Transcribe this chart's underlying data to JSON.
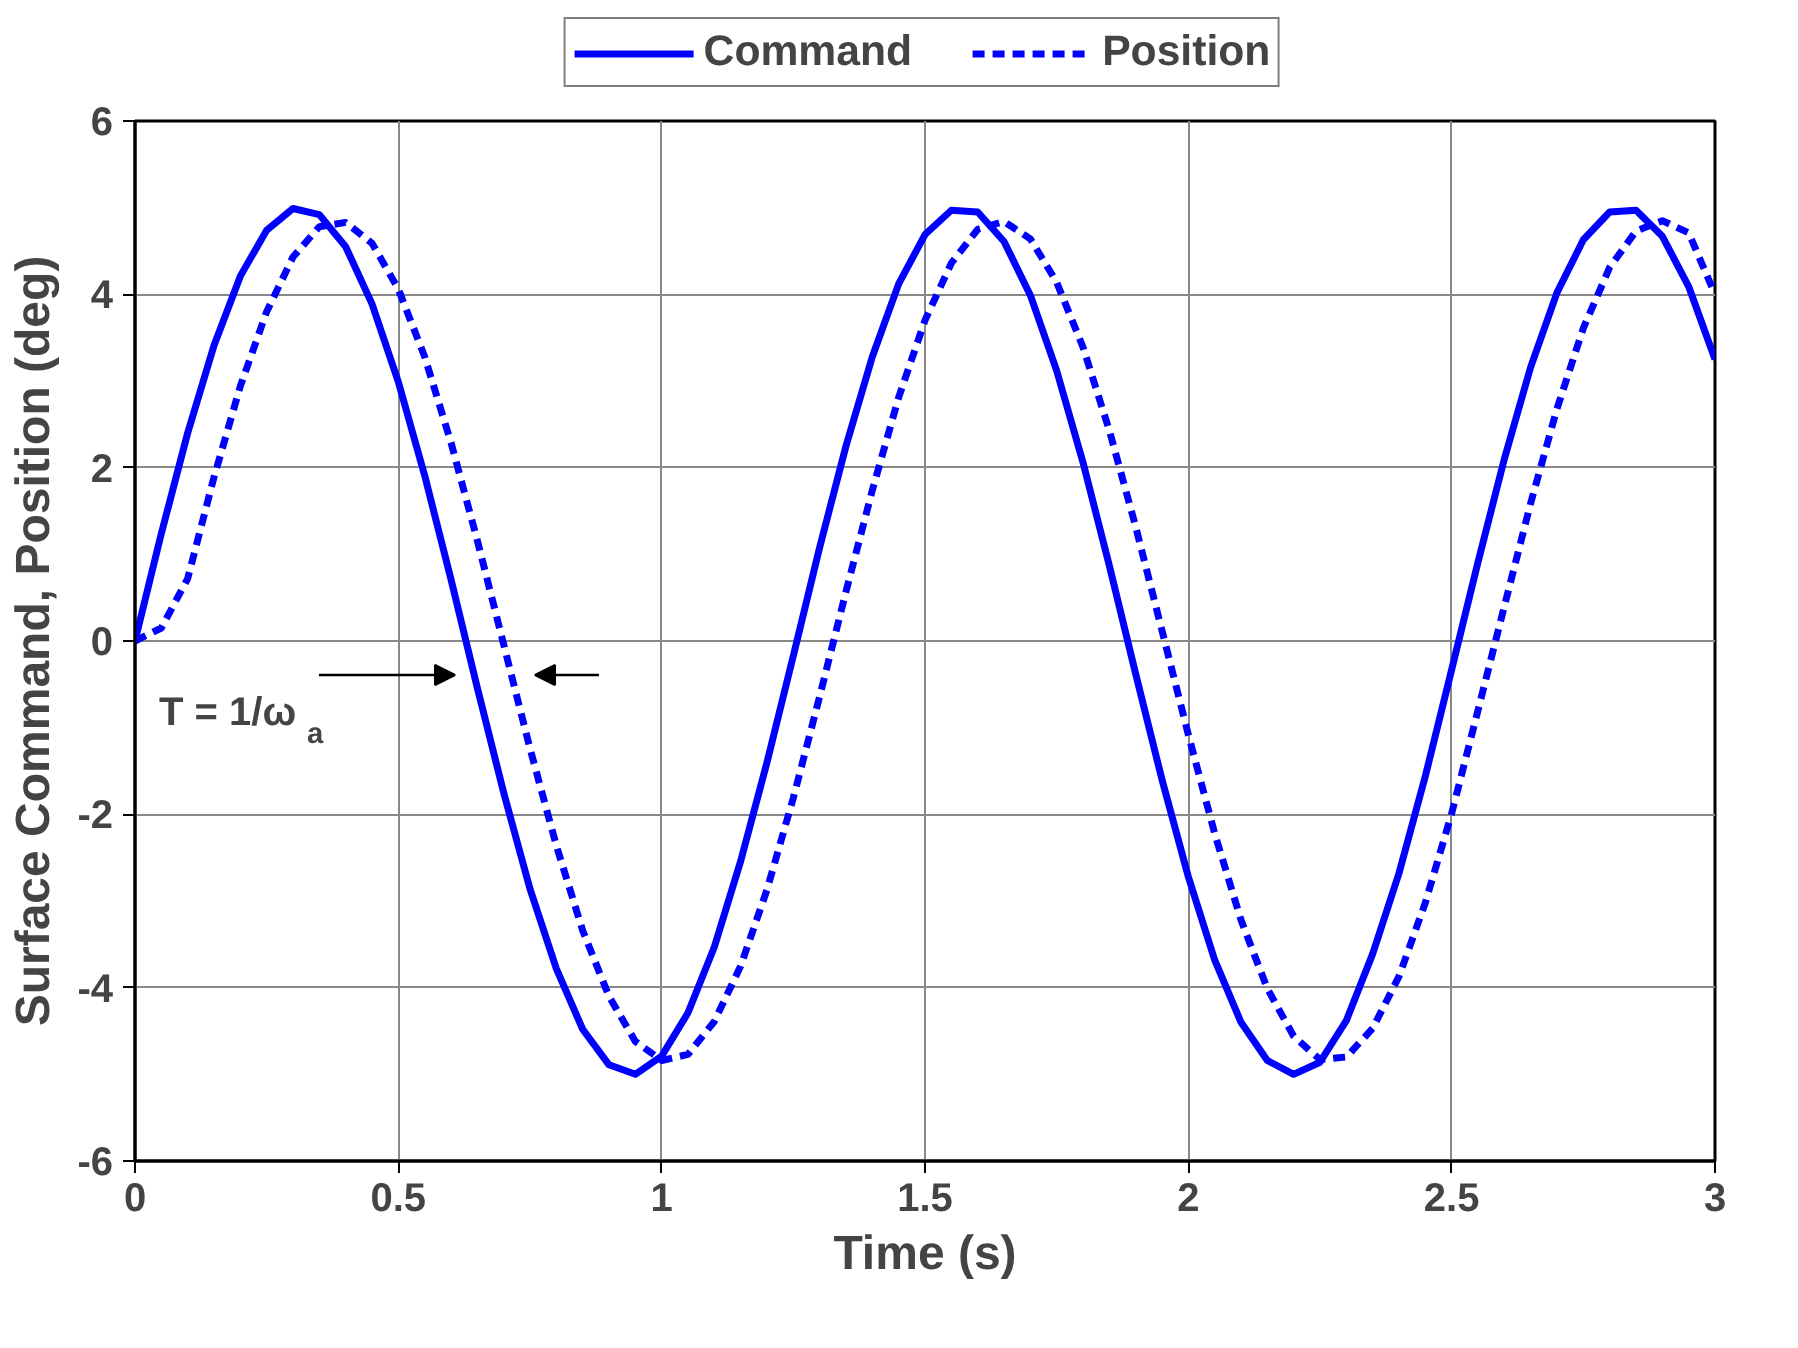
{
  "chart_data": {
    "type": "line",
    "xlabel": "Time (s)",
    "ylabel": "Surface Command, Position (deg)",
    "x": [
      0,
      0.05,
      0.1,
      0.15,
      0.2,
      0.25,
      0.3,
      0.35,
      0.4,
      0.45,
      0.5,
      0.55,
      0.6,
      0.65,
      0.7,
      0.75,
      0.8,
      0.85,
      0.9,
      0.95,
      1.0,
      1.05,
      1.1,
      1.15,
      1.2,
      1.25,
      1.3,
      1.35,
      1.4,
      1.45,
      1.5,
      1.55,
      1.6,
      1.65,
      1.7,
      1.75,
      1.8,
      1.85,
      1.9,
      1.95,
      2.0,
      2.05,
      2.1,
      2.15,
      2.2,
      2.25,
      2.3,
      2.35,
      2.4,
      2.45,
      2.5,
      2.55,
      2.6,
      2.65,
      2.7,
      2.75,
      2.8,
      2.85,
      2.9,
      2.95,
      3.0
    ],
    "series": [
      {
        "name": "Command",
        "color": "#0000ff",
        "line_style": "solid",
        "values": [
          0,
          1.24,
          2.4,
          3.41,
          4.21,
          4.74,
          4.99,
          4.92,
          4.55,
          3.89,
          2.99,
          1.91,
          0.71,
          -0.54,
          -1.75,
          -2.86,
          -3.78,
          -4.48,
          -4.89,
          -5.0,
          -4.79,
          -4.29,
          -3.53,
          -2.54,
          -1.4,
          -0.17,
          1.08,
          2.25,
          3.28,
          4.12,
          4.69,
          4.97,
          4.95,
          4.61,
          3.99,
          3.12,
          2.06,
          0.87,
          -0.38,
          -1.6,
          -2.72,
          -3.68,
          -4.4,
          -4.84,
          -5.0,
          -4.86,
          -4.38,
          -3.61,
          -2.68,
          -1.56,
          -0.33,
          0.91,
          2.1,
          3.16,
          4.02,
          4.63,
          4.95,
          4.97,
          4.67,
          4.09,
          3.25
        ]
      },
      {
        "name": "Position",
        "color": "#0000ff",
        "line_style": "dashed",
        "values": [
          0,
          0.15,
          0.72,
          1.89,
          2.94,
          3.8,
          4.43,
          4.78,
          4.83,
          4.59,
          4.06,
          3.28,
          2.29,
          1.16,
          -0.04,
          -1.24,
          -2.36,
          -3.34,
          -4.1,
          -4.62,
          -4.84,
          -4.77,
          -4.39,
          -3.75,
          -2.87,
          -1.81,
          -0.64,
          0.57,
          1.74,
          2.81,
          3.7,
          4.36,
          4.75,
          4.84,
          4.64,
          4.14,
          3.39,
          2.43,
          1.32,
          0.12,
          -1.08,
          -2.22,
          -3.22,
          -4.01,
          -4.56,
          -4.83,
          -4.8,
          -4.47,
          -3.87,
          -3.02,
          -1.99,
          -0.8,
          0.4,
          1.59,
          2.68,
          3.61,
          4.31,
          4.73,
          4.85,
          4.71,
          4.0
        ]
      }
    ],
    "xlim": [
      0,
      3
    ],
    "xticks": [
      0,
      0.5,
      1,
      1.5,
      2,
      2.5,
      3
    ],
    "ylim": [
      -6,
      6
    ],
    "yticks": [
      -6,
      -4,
      -2,
      0,
      2,
      4,
      6
    ],
    "grid": true,
    "legend": "top",
    "marker": "none",
    "annotations": [
      "T = 1/ω$_{a}$"
    ]
  }
}
